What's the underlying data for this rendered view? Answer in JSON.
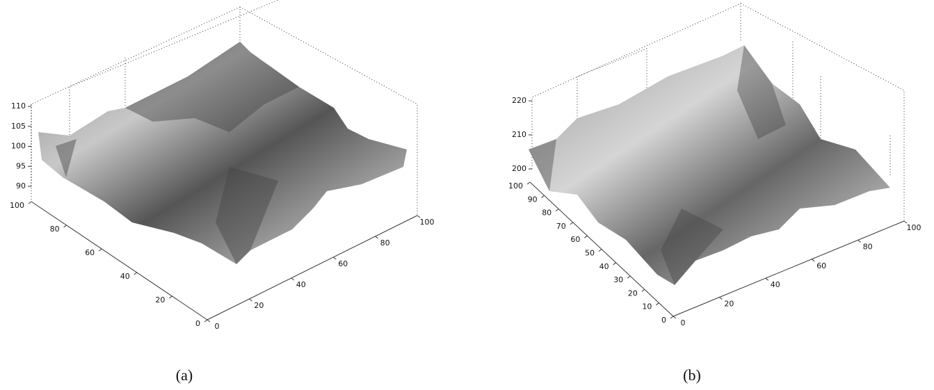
{
  "figures": [
    {
      "caption": "(a)",
      "xlim": [
        0,
        100
      ],
      "ylim": [
        0,
        100
      ],
      "zlim": [
        90,
        110
      ],
      "xticks": [
        0,
        20,
        40,
        60,
        80,
        100
      ],
      "yticks": [
        0,
        20,
        40,
        60,
        80,
        100
      ],
      "zticks": [
        90,
        95,
        100,
        105,
        110
      ]
    },
    {
      "caption": "(b)",
      "xlim": [
        0,
        100
      ],
      "ylim": [
        0,
        100
      ],
      "zlim": [
        200,
        220
      ],
      "xticks": [
        0,
        20,
        40,
        60,
        80,
        100
      ],
      "yticks": [
        0,
        10,
        20,
        30,
        40,
        50,
        60,
        70,
        80,
        90,
        100
      ],
      "zticks": [
        200,
        210,
        220
      ]
    }
  ]
}
